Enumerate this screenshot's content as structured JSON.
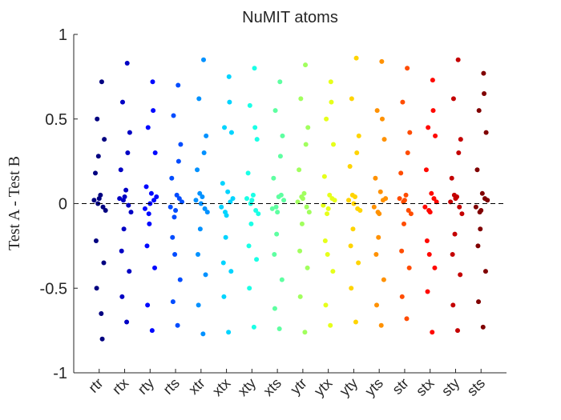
{
  "chart_data": {
    "type": "scatter",
    "title": "NuMIT atoms",
    "ylabel": "Test A - Test B",
    "categories": [
      "rtr",
      "rtx",
      "rty",
      "rts",
      "xtr",
      "xtx",
      "xty",
      "xts",
      "ytr",
      "ytx",
      "yty",
      "yts",
      "str",
      "stx",
      "sty",
      "sts"
    ],
    "xticks": [
      1,
      2,
      3,
      4,
      5,
      6,
      7,
      8,
      9,
      10,
      11,
      12,
      13,
      14,
      15,
      16
    ],
    "xlim": [
      0,
      17
    ],
    "ylim": [
      -1,
      1
    ],
    "yticks": [
      -1,
      -0.5,
      0,
      0.5,
      1
    ],
    "reference_line": 0,
    "series": [
      {
        "color": "#000080",
        "x": [
          1.1,
          0.92,
          1.2,
          0.85,
          1.05,
          0.8,
          1.15,
          0.95,
          1.25,
          1,
          0.88,
          1.18,
          0.9,
          1.08,
          1.12,
          0.97
        ],
        "values": [
          0.72,
          0.5,
          0.38,
          0.18,
          0.05,
          0.02,
          -0.02,
          0,
          -0.04,
          0.03,
          -0.22,
          -0.35,
          -0.5,
          -0.65,
          -0.8,
          0.28
        ]
      },
      {
        "color": "#0000c4",
        "x": [
          2.1,
          1.92,
          2.2,
          1.85,
          2.05,
          1.8,
          2.15,
          1.95,
          2.25,
          2,
          1.88,
          2.18,
          1.9,
          2.08,
          2.12,
          1.97
        ],
        "values": [
          0.83,
          0.6,
          0.42,
          0.2,
          0.08,
          0.03,
          -0.01,
          0.02,
          -0.05,
          0.04,
          -0.28,
          -0.4,
          -0.55,
          -0.7,
          0.3,
          -0.15
        ]
      },
      {
        "color": "#0008ff",
        "x": [
          3.1,
          2.92,
          3.2,
          2.85,
          3.05,
          2.8,
          3.15,
          2.95,
          3.25,
          3,
          2.88,
          3.18,
          2.9,
          3.08,
          3.12,
          2.97
        ],
        "values": [
          0.72,
          0.45,
          0.3,
          0.1,
          0.06,
          -0.03,
          0.02,
          -0.06,
          0.04,
          0,
          -0.25,
          -0.38,
          -0.6,
          -0.75,
          0.55,
          -0.12
        ]
      },
      {
        "color": "#004cff",
        "x": [
          4.1,
          3.92,
          4.2,
          3.85,
          4.05,
          3.8,
          4.15,
          3.95,
          4.25,
          4,
          3.88,
          4.18,
          3.9,
          4.08,
          4.12,
          3.97
        ],
        "values": [
          0.7,
          0.52,
          0.35,
          0.15,
          0.05,
          -0.02,
          0.03,
          -0.08,
          0.01,
          -0.04,
          -0.2,
          -0.45,
          -0.58,
          -0.72,
          0.25,
          -0.3
        ]
      },
      {
        "color": "#0091ff",
        "x": [
          5.1,
          4.92,
          5.2,
          4.85,
          5.05,
          4.8,
          5.15,
          4.95,
          5.25,
          5,
          4.88,
          5.18,
          4.9,
          5.08,
          5.12,
          4.97
        ],
        "values": [
          0.85,
          0.62,
          0.4,
          0.2,
          0.04,
          0.02,
          -0.03,
          0.06,
          -0.05,
          0,
          -0.3,
          -0.42,
          -0.6,
          -0.77,
          0.3,
          -0.15
        ]
      },
      {
        "color": "#00d4ff",
        "x": [
          6.1,
          5.92,
          6.2,
          5.85,
          6.05,
          5.8,
          6.15,
          5.95,
          6.25,
          6,
          5.88,
          6.18,
          5.9,
          6.08,
          6.12,
          5.97
        ],
        "values": [
          0.75,
          0.45,
          0.42,
          0.12,
          0.07,
          -0.02,
          0.01,
          -0.05,
          0.03,
          -0.07,
          -0.35,
          -0.4,
          -0.55,
          -0.76,
          0.6,
          -0.2
        ]
      },
      {
        "color": "#1affe6",
        "x": [
          7.1,
          6.92,
          7.2,
          6.85,
          7.05,
          6.8,
          7.15,
          6.95,
          7.25,
          7,
          6.88,
          7.18,
          6.9,
          7.08,
          7.12,
          6.97
        ],
        "values": [
          0.8,
          0.58,
          0.38,
          0.18,
          0.05,
          0.03,
          -0.04,
          0,
          -0.06,
          0.02,
          -0.25,
          -0.33,
          -0.5,
          -0.73,
          0.45,
          -0.12
        ]
      },
      {
        "color": "#5effa1",
        "x": [
          8.1,
          7.92,
          8.2,
          7.85,
          8.05,
          7.8,
          8.15,
          7.95,
          8.25,
          8,
          7.88,
          8.18,
          7.9,
          8.08,
          8.12,
          7.97
        ],
        "values": [
          0.72,
          0.55,
          0.4,
          0.15,
          0.04,
          -0.03,
          0.05,
          -0.02,
          0.02,
          -0.05,
          -0.3,
          -0.45,
          -0.62,
          -0.74,
          0.28,
          -0.18
        ]
      },
      {
        "color": "#a1ff5e",
        "x": [
          9.1,
          8.92,
          9.2,
          8.85,
          9.05,
          8.8,
          9.15,
          8.95,
          9.25,
          9,
          8.88,
          9.18,
          8.9,
          9.08,
          9.12,
          8.97
        ],
        "values": [
          0.82,
          0.62,
          0.45,
          0.2,
          0.06,
          0.01,
          -0.02,
          0.04,
          -0.05,
          0.03,
          -0.28,
          -0.38,
          -0.55,
          -0.76,
          0.35,
          -0.12
        ]
      },
      {
        "color": "#e6ff1a",
        "x": [
          10.1,
          9.92,
          10.2,
          9.85,
          10.05,
          9.8,
          10.15,
          9.95,
          10.25,
          10,
          9.88,
          10.18,
          9.9,
          10.08,
          10.12,
          9.97
        ],
        "values": [
          0.72,
          0.5,
          0.35,
          0.16,
          0.05,
          -0.01,
          0.03,
          -0.06,
          0.02,
          -0.03,
          -0.22,
          -0.4,
          -0.6,
          -0.72,
          0.6,
          -0.3
        ]
      },
      {
        "color": "#ffd400",
        "x": [
          11.1,
          10.92,
          11.2,
          10.85,
          11.05,
          10.8,
          11.15,
          10.95,
          11.25,
          11,
          10.88,
          11.18,
          10.9,
          11.08,
          11.12,
          10.97
        ],
        "values": [
          0.86,
          0.62,
          0.4,
          0.22,
          0.04,
          0.02,
          -0.03,
          0.05,
          -0.04,
          0,
          -0.25,
          -0.35,
          -0.5,
          -0.7,
          0.3,
          -0.15
        ]
      },
      {
        "color": "#ff9100",
        "x": [
          12.1,
          11.92,
          12.2,
          11.85,
          12.05,
          11.8,
          12.15,
          11.95,
          12.25,
          12,
          11.88,
          12.18,
          11.9,
          12.08,
          12.12,
          11.97
        ],
        "values": [
          0.84,
          0.55,
          0.38,
          0.15,
          0.07,
          -0.02,
          0.02,
          -0.05,
          0.03,
          -0.06,
          -0.3,
          -0.45,
          -0.6,
          -0.72,
          0.5,
          -0.2
        ]
      },
      {
        "color": "#ff4c00",
        "x": [
          13.1,
          12.92,
          13.2,
          12.85,
          13.05,
          12.8,
          13.15,
          12.95,
          13.25,
          13,
          12.88,
          13.18,
          12.9,
          13.08,
          13.12,
          12.97
        ],
        "values": [
          0.8,
          0.6,
          0.42,
          0.18,
          0.05,
          0.03,
          -0.04,
          0.01,
          -0.06,
          0.02,
          -0.28,
          -0.38,
          -0.55,
          -0.68,
          0.3,
          -0.12
        ]
      },
      {
        "color": "#ff0800",
        "x": [
          14.1,
          13.92,
          14.2,
          13.85,
          14.05,
          13.8,
          14.15,
          13.95,
          14.25,
          14,
          13.88,
          14.18,
          13.9,
          14.08,
          14.12,
          13.97
        ],
        "values": [
          0.73,
          0.45,
          0.4,
          0.2,
          0.06,
          -0.02,
          0.03,
          -0.04,
          0.01,
          -0.05,
          -0.22,
          -0.38,
          -0.52,
          -0.76,
          0.55,
          -0.3
        ]
      },
      {
        "color": "#c40000",
        "x": [
          15.1,
          14.92,
          15.2,
          14.85,
          15.05,
          14.8,
          15.15,
          14.95,
          15.25,
          15,
          14.88,
          15.18,
          14.9,
          15.08,
          15.12,
          14.97
        ],
        "values": [
          0.85,
          0.62,
          0.38,
          0.15,
          0.04,
          0.01,
          -0.02,
          0.05,
          -0.06,
          0.03,
          -0.3,
          -0.42,
          -0.6,
          -0.75,
          0.3,
          -0.18
        ]
      },
      {
        "color": "#800000",
        "x": [
          16.1,
          15.92,
          16.2,
          15.85,
          16.05,
          15.8,
          16.15,
          15.95,
          16.25,
          16,
          15.88,
          16.18,
          15.9,
          16.08,
          16.12,
          15.97
        ],
        "values": [
          0.77,
          0.55,
          0.42,
          0.2,
          0.06,
          -0.02,
          0.03,
          -0.05,
          0.02,
          -0.04,
          -0.25,
          -0.4,
          -0.58,
          -0.73,
          0.65,
          -0.15
        ]
      }
    ]
  }
}
